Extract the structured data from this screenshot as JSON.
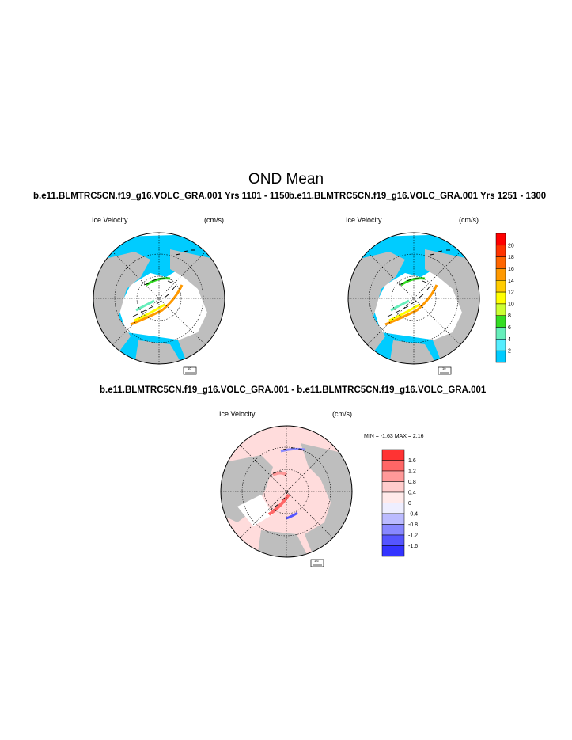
{
  "page": {
    "title": "OND Mean",
    "panel_left_title": "b.e11.BLMTRC5CN.f19_g16.VOLC_GRA.001  Yrs 1101 - 1150",
    "panel_right_title": "b.e11.BLMTRC5CN.f19_g16.VOLC_GRA.001  Yrs 1251 - 1300",
    "diff_title": "b.e11.BLMTRC5CN.f19_g16.VOLC_GRA.001 - b.e11.BLMTRC5CN.f19_g16.VOLC_GRA.001"
  },
  "panels": {
    "left": {
      "variable": "Ice Velocity",
      "units": "(cm/s)",
      "ref_vector": "10"
    },
    "right": {
      "variable": "Ice Velocity",
      "units": "(cm/s)",
      "ref_vector": "10"
    },
    "diff": {
      "variable": "Ice Velocity",
      "units": "(cm/s)",
      "ref_vector": "1.6",
      "minmax": "MIN =  -1.63 MAX =   2.16"
    }
  },
  "colorbar_top": {
    "labels": [
      "20",
      "18",
      "16",
      "14",
      "12",
      "10",
      "8",
      "6",
      "4",
      "2"
    ],
    "colors": [
      "#ff0000",
      "#ff3300",
      "#ff6600",
      "#ff9900",
      "#ffcc00",
      "#ffff00",
      "#ccff33",
      "#33dd22",
      "#66eebb",
      "#55eeff",
      "#00ccff"
    ]
  },
  "colorbar_diff": {
    "labels": [
      "1.6",
      "1.2",
      "0.8",
      "0.4",
      "0",
      "-0.4",
      "-0.8",
      "-1.2",
      "-1.6"
    ],
    "colors": [
      "#ff3333",
      "#ff6666",
      "#ff9999",
      "#ffcccc",
      "#ffeaea",
      "#eeeeff",
      "#bbbbff",
      "#8888ff",
      "#5555ff",
      "#3333ff"
    ]
  },
  "map_colors": {
    "land": "#bebebe",
    "ice": "#00ccff",
    "ocean": "#ffffff",
    "diff_pos": "#ffdcdc"
  }
}
